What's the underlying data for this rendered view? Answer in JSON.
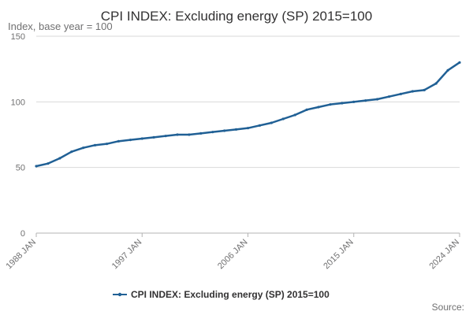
{
  "chart_data": {
    "type": "line",
    "title": "CPI INDEX: Excluding energy (SP) 2015=100",
    "ylabel": "Index, base year = 100",
    "ylim": [
      0,
      150
    ],
    "yticks": [
      0,
      50,
      100,
      150
    ],
    "x_tick_labels": [
      "1988 JAN",
      "1997 JAN",
      "2006 JAN",
      "2015 JAN",
      "2024 JAN"
    ],
    "grid": "horizontal",
    "legend": "bottom-center",
    "series": [
      {
        "name": "CPI INDEX: Excluding energy (SP) 2015=100",
        "color": "#206095",
        "x": [
          1988,
          1989,
          1990,
          1991,
          1992,
          1993,
          1994,
          1995,
          1996,
          1997,
          1998,
          1999,
          2000,
          2001,
          2002,
          2003,
          2004,
          2005,
          2006,
          2007,
          2008,
          2009,
          2010,
          2011,
          2012,
          2013,
          2014,
          2015,
          2016,
          2017,
          2018,
          2019,
          2020,
          2021,
          2022,
          2023,
          2024
        ],
        "values": [
          51,
          53,
          57,
          62,
          65,
          67,
          68,
          70,
          71,
          72,
          73,
          74,
          75,
          75,
          76,
          77,
          78,
          79,
          80,
          82,
          84,
          87,
          90,
          94,
          96,
          98,
          99,
          100,
          101,
          102,
          104,
          106,
          108,
          109,
          114,
          124,
          130
        ]
      }
    ]
  },
  "source": {
    "label": "Source:"
  }
}
